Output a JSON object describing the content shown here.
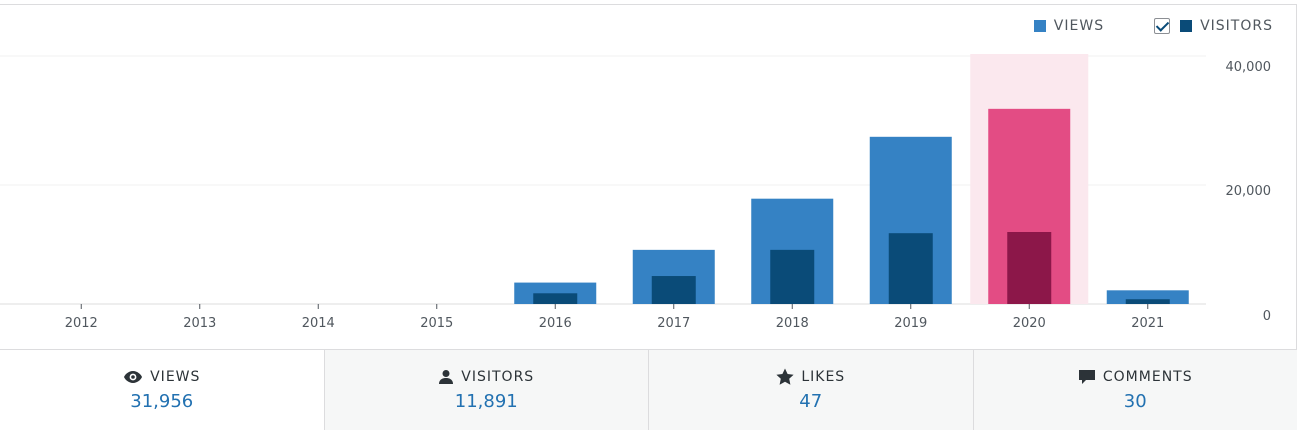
{
  "legend": {
    "views_label": "VIEWS",
    "visitors_label": "VISITORS",
    "visitors_checked": true
  },
  "chart_data": {
    "type": "bar",
    "categories": [
      "2012",
      "2013",
      "2014",
      "2015",
      "2016",
      "2017",
      "2018",
      "2019",
      "2020",
      "2021"
    ],
    "series": [
      {
        "name": "VIEWS",
        "values": [
          0,
          0,
          0,
          0,
          3600,
          9100,
          17700,
          28100,
          32800,
          2300
        ]
      },
      {
        "name": "VISITORS",
        "values": [
          0,
          0,
          0,
          0,
          1800,
          4700,
          9100,
          11900,
          12100,
          800
        ]
      }
    ],
    "highlighted_category": "2020",
    "yticks": [
      "0",
      "20,000",
      "40,000"
    ],
    "ylim": [
      0,
      40000
    ],
    "grid": true,
    "legend_position": "top-right",
    "colors": {
      "views": "#3582c4",
      "visitors": "#0a4b78",
      "views_highlight": "#e34c84",
      "visitors_highlight": "#8c1749",
      "highlight_bg": "#fbe8ee"
    }
  },
  "stats": [
    {
      "icon": "eye-icon",
      "label": "VIEWS",
      "value": "31,956"
    },
    {
      "icon": "person-icon",
      "label": "VISITORS",
      "value": "11,891"
    },
    {
      "icon": "star-icon",
      "label": "LIKES",
      "value": "47"
    },
    {
      "icon": "comment-icon",
      "label": "COMMENTS",
      "value": "30"
    }
  ]
}
